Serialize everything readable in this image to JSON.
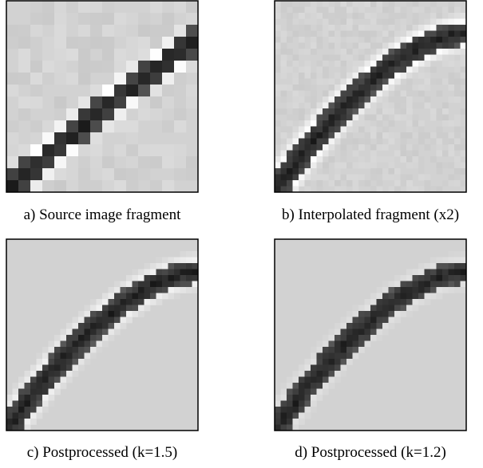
{
  "figure": {
    "panels": [
      {
        "caption": "a) Source image fragment"
      },
      {
        "caption": "b) Interpolated fragment (x2)"
      },
      {
        "caption": "c) Postprocessed (k=1.5)"
      },
      {
        "caption": "d) Postprocessed (k=1.2)"
      }
    ]
  }
}
